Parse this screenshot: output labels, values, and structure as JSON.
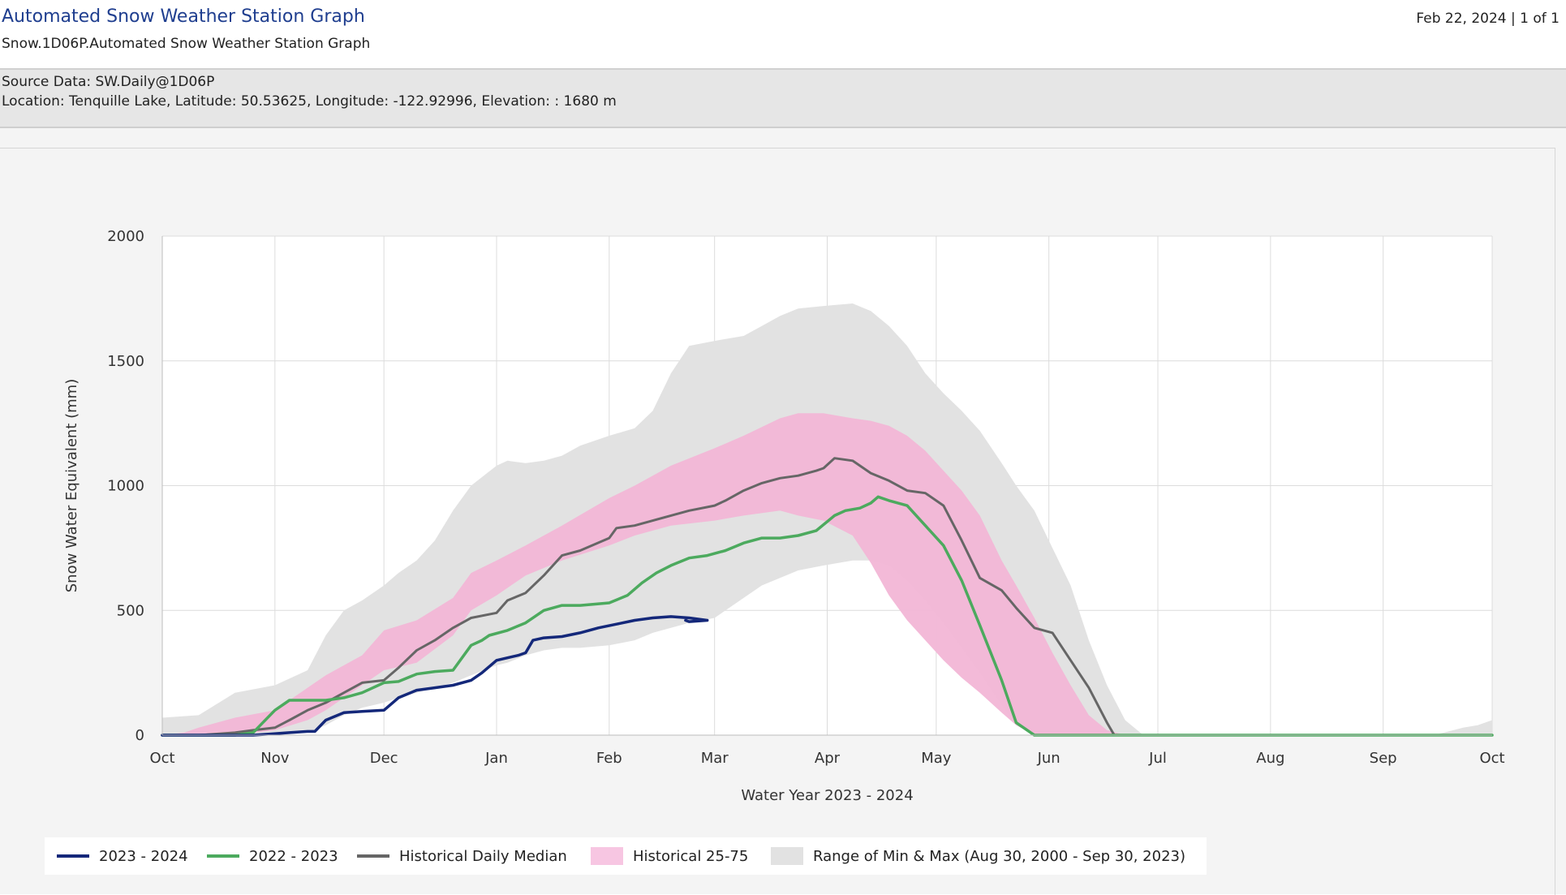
{
  "header": {
    "title": "Automated Snow Weather Station Graph",
    "subtitle": "Snow.1D06P.Automated Snow Weather Station Graph",
    "page_info": "Feb 22, 2024 | 1 of 1"
  },
  "info": {
    "source": "Source Data: SW.Daily@1D06P",
    "location": "Location: Tenquille Lake, Latitude: 50.53625, Longitude: -122.92996, Elevation: : 1680 m"
  },
  "colors": {
    "current": "#14287a",
    "previous": "#4caa5e",
    "median": "#666666",
    "p25_75": "#f2b6d6",
    "minmax": "#e2e2e2"
  },
  "chart_data": {
    "type": "area",
    "title": "",
    "xlabel": "Water Year 2023 - 2024",
    "ylabel": "Snow Water Equivalent (mm)",
    "x_ticks": [
      "Oct",
      "Nov",
      "Dec",
      "Jan",
      "Feb",
      "Mar",
      "Apr",
      "May",
      "Jun",
      "Jul",
      "Aug",
      "Sep",
      "Oct"
    ],
    "x_unit": "day of water year (0 = Oct 1)",
    "xlim": [
      0,
      366
    ],
    "ylim": [
      0,
      2000
    ],
    "y_ticks": [
      0,
      500,
      1000,
      1500,
      2000
    ],
    "grid": true,
    "legend_position": "bottom",
    "bands": [
      {
        "name": "Range of Min & Max (Aug 30, 2000 - Sep 30, 2023)",
        "x": [
          0,
          10,
          20,
          31,
          40,
          45,
          50,
          55,
          61,
          65,
          70,
          75,
          80,
          85,
          92,
          95,
          100,
          105,
          110,
          115,
          123,
          130,
          135,
          140,
          145,
          152,
          160,
          165,
          170,
          175,
          182,
          190,
          195,
          200,
          205,
          210,
          215,
          220,
          225,
          231,
          235,
          240,
          245,
          250,
          255,
          260,
          265,
          270,
          275,
          280,
          285,
          292,
          300,
          310,
          320,
          335,
          350,
          358,
          362,
          366
        ],
        "low": [
          0,
          0,
          0,
          0,
          10,
          40,
          80,
          110,
          130,
          150,
          170,
          190,
          210,
          240,
          280,
          290,
          320,
          340,
          350,
          350,
          360,
          380,
          410,
          430,
          450,
          470,
          550,
          600,
          630,
          660,
          680,
          700,
          700,
          680,
          620,
          540,
          450,
          350,
          250,
          120,
          40,
          0,
          0,
          0,
          0,
          0,
          0,
          0,
          0,
          0,
          0,
          0,
          0,
          0,
          0,
          0,
          0,
          0,
          0,
          0
        ],
        "high": [
          70,
          80,
          170,
          200,
          260,
          400,
          500,
          540,
          600,
          650,
          700,
          780,
          900,
          1000,
          1080,
          1100,
          1090,
          1100,
          1120,
          1160,
          1200,
          1230,
          1300,
          1450,
          1560,
          1580,
          1600,
          1640,
          1680,
          1710,
          1720,
          1730,
          1700,
          1640,
          1560,
          1450,
          1370,
          1300,
          1220,
          1090,
          1000,
          900,
          750,
          600,
          380,
          200,
          60,
          0,
          0,
          0,
          0,
          0,
          0,
          0,
          0,
          0,
          0,
          30,
          40,
          60
        ]
      },
      {
        "name": "Historical 25-75",
        "x": [
          0,
          6,
          10,
          20,
          31,
          40,
          45,
          50,
          55,
          61,
          70,
          80,
          85,
          92,
          100,
          110,
          123,
          130,
          140,
          152,
          160,
          170,
          175,
          182,
          190,
          195,
          200,
          205,
          210,
          215,
          220,
          225,
          231,
          235,
          240,
          245,
          250,
          255,
          260,
          265,
          270
        ],
        "low": [
          0,
          0,
          0,
          0,
          20,
          60,
          100,
          150,
          200,
          260,
          290,
          400,
          500,
          560,
          640,
          700,
          760,
          800,
          840,
          860,
          880,
          900,
          880,
          860,
          800,
          690,
          560,
          460,
          380,
          300,
          230,
          170,
          90,
          40,
          0,
          0,
          0,
          0,
          0,
          0,
          0
        ],
        "high": [
          0,
          10,
          30,
          70,
          100,
          190,
          240,
          280,
          320,
          420,
          460,
          550,
          650,
          700,
          760,
          840,
          950,
          1000,
          1080,
          1150,
          1200,
          1270,
          1290,
          1290,
          1270,
          1260,
          1240,
          1200,
          1140,
          1060,
          980,
          880,
          700,
          600,
          470,
          330,
          200,
          80,
          20,
          0,
          0
        ]
      }
    ],
    "series": [
      {
        "name": "Historical Daily Median",
        "x": [
          0,
          10,
          15,
          20,
          25,
          31,
          35,
          40,
          45,
          50,
          55,
          61,
          65,
          70,
          75,
          80,
          85,
          92,
          95,
          100,
          105,
          110,
          115,
          123,
          125,
          130,
          135,
          140,
          145,
          152,
          155,
          160,
          165,
          170,
          175,
          180,
          182,
          185,
          190,
          195,
          200,
          205,
          210,
          215,
          220,
          225,
          231,
          235,
          240,
          245,
          250,
          255,
          260,
          262,
          266,
          270,
          280,
          300,
          320,
          340,
          366
        ],
        "y": [
          0,
          0,
          5,
          10,
          20,
          30,
          60,
          100,
          130,
          170,
          210,
          220,
          270,
          340,
          380,
          430,
          470,
          490,
          540,
          570,
          640,
          720,
          740,
          790,
          830,
          840,
          860,
          880,
          900,
          920,
          940,
          980,
          1010,
          1030,
          1040,
          1060,
          1070,
          1110,
          1100,
          1050,
          1020,
          980,
          970,
          920,
          780,
          630,
          580,
          510,
          430,
          410,
          300,
          190,
          50,
          0,
          0,
          0,
          0,
          0,
          0,
          0,
          0
        ]
      },
      {
        "name": "2022 - 2023",
        "x": [
          0,
          10,
          20,
          25,
          27,
          31,
          35,
          38,
          45,
          50,
          55,
          61,
          65,
          70,
          75,
          80,
          85,
          88,
          90,
          95,
          100,
          105,
          110,
          115,
          123,
          128,
          132,
          136,
          140,
          145,
          150,
          155,
          160,
          165,
          170,
          175,
          180,
          185,
          188,
          192,
          195,
          197,
          200,
          205,
          210,
          215,
          220,
          225,
          231,
          235,
          240,
          244,
          246,
          250,
          270,
          300,
          320,
          340,
          366
        ],
        "y": [
          0,
          0,
          0,
          10,
          40,
          100,
          140,
          140,
          140,
          150,
          170,
          210,
          215,
          245,
          255,
          260,
          360,
          380,
          400,
          420,
          450,
          500,
          520,
          520,
          530,
          560,
          610,
          650,
          680,
          710,
          720,
          740,
          770,
          790,
          790,
          800,
          820,
          880,
          900,
          910,
          930,
          955,
          940,
          920,
          840,
          760,
          620,
          440,
          220,
          50,
          0,
          0,
          0,
          0,
          0,
          0,
          0,
          0,
          0
        ]
      },
      {
        "name": "2023 - 2024",
        "x": [
          0,
          5,
          10,
          15,
          20,
          25,
          30,
          35,
          40,
          42,
          45,
          50,
          55,
          61,
          65,
          70,
          75,
          80,
          85,
          88,
          92,
          95,
          98,
          100,
          102,
          105,
          110,
          115,
          120,
          125,
          130,
          135,
          140,
          145,
          150,
          145,
          144
        ],
        "y": [
          0,
          0,
          0,
          0,
          0,
          0,
          5,
          10,
          15,
          15,
          60,
          90,
          95,
          100,
          150,
          180,
          190,
          200,
          220,
          250,
          300,
          310,
          320,
          330,
          380,
          390,
          395,
          410,
          430,
          445,
          460,
          470,
          475,
          470,
          460,
          455,
          460
        ]
      }
    ]
  },
  "legend": {
    "items": [
      {
        "label": "2023 - 2024"
      },
      {
        "label": "2022 - 2023"
      },
      {
        "label": "Historical Daily Median"
      },
      {
        "label": "Historical 25-75"
      },
      {
        "label": "Range of Min & Max (Aug 30, 2000 - Sep 30, 2023)"
      }
    ]
  }
}
